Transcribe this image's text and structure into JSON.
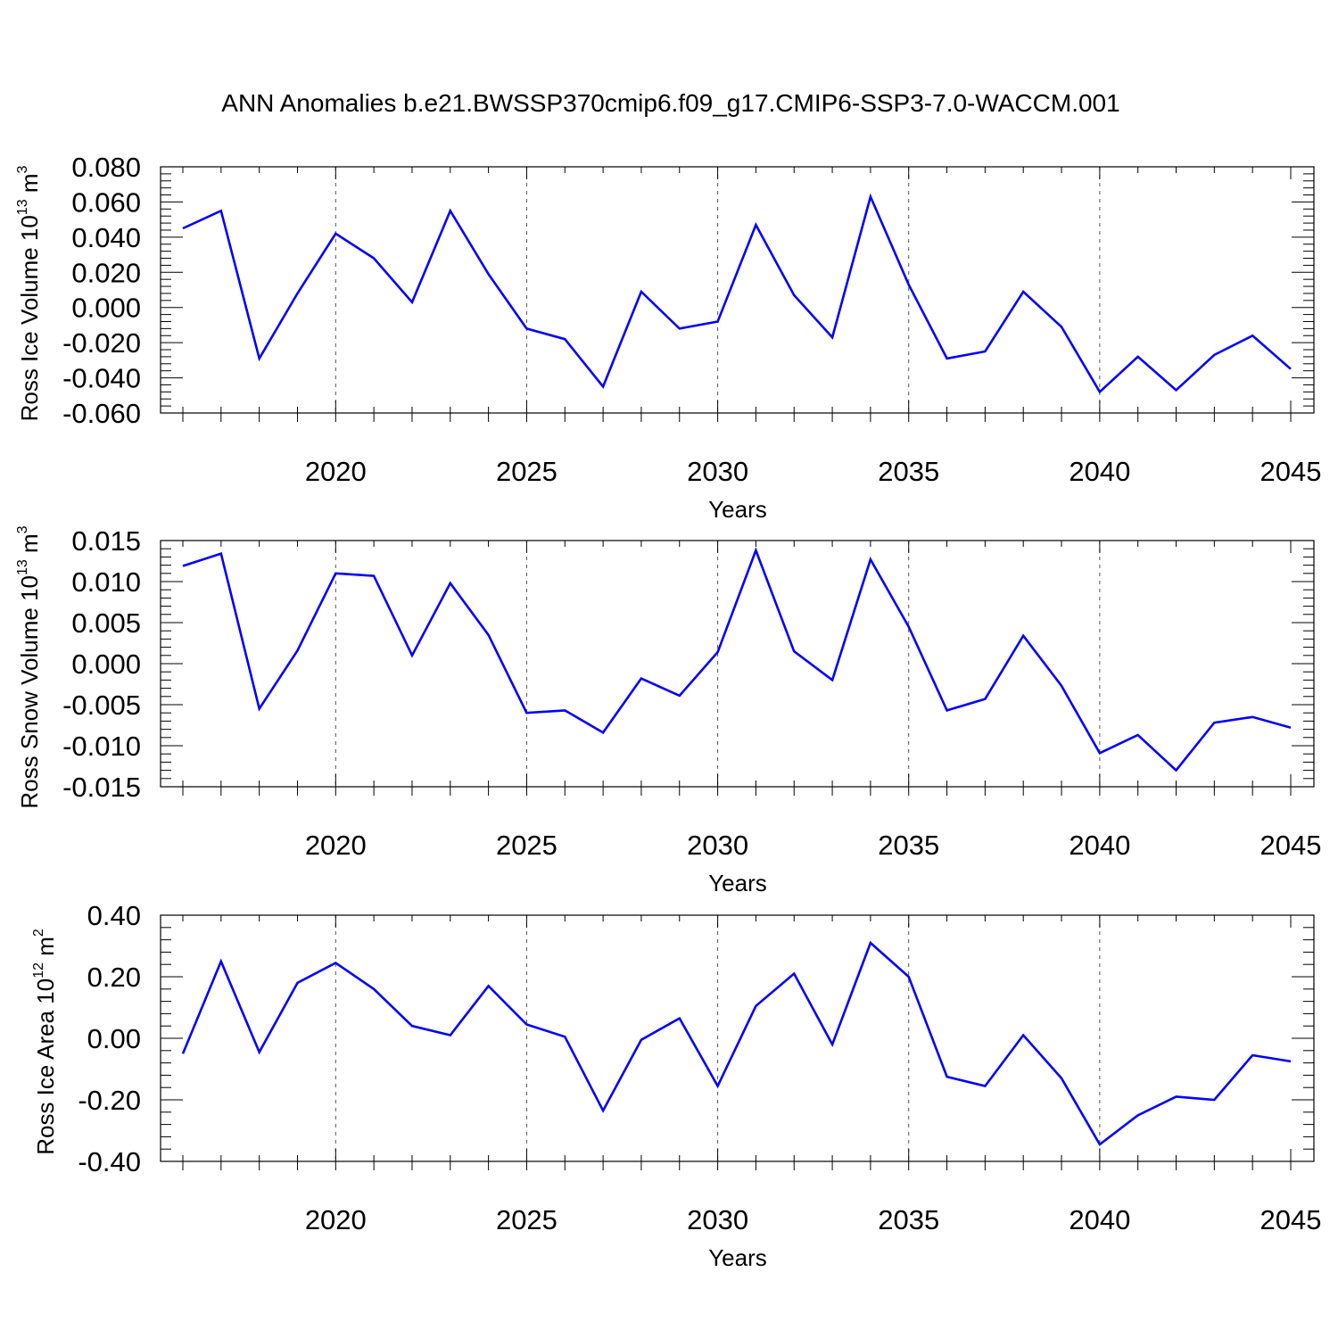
{
  "title": "ANN Anomalies b.e21.BWSSP370cmip6.f09_g17.CMIP6-SSP3-7.0-WACCM.001",
  "colors": {
    "line": "#0000ff",
    "axis": "#000000",
    "grid": "#555555",
    "background": "#ffffff"
  },
  "chart_data": [
    {
      "type": "line",
      "ylabel_main": "Ross Ice Volume 10",
      "ylabel_exp": "13",
      "ylabel_unit": " m",
      "ylabel_unit_exp": "3",
      "xlabel": "Years",
      "xlim": [
        2016,
        2045
      ],
      "ylim": [
        -0.06,
        0.08
      ],
      "yticks": [
        -0.06,
        -0.04,
        -0.02,
        0.0,
        0.02,
        0.04,
        0.06,
        0.08
      ],
      "ytick_labels": [
        "-0.060",
        "-0.040",
        "-0.020",
        "0.000",
        "0.020",
        "0.040",
        "0.060",
        "0.080"
      ],
      "xticks": [
        2020,
        2025,
        2030,
        2035,
        2040,
        2045
      ],
      "xtick_labels": [
        "2020",
        "2025",
        "2030",
        "2035",
        "2040",
        "2045"
      ],
      "grid": "dashed vertical at major x ticks",
      "x": [
        2016,
        2017,
        2018,
        2019,
        2020,
        2021,
        2022,
        2023,
        2024,
        2025,
        2026,
        2027,
        2028,
        2029,
        2030,
        2031,
        2032,
        2033,
        2034,
        2035,
        2036,
        2037,
        2038,
        2039,
        2040,
        2041,
        2042,
        2043,
        2044,
        2045
      ],
      "values": [
        0.045,
        0.055,
        -0.029,
        0.008,
        0.042,
        0.028,
        0.003,
        0.055,
        0.019,
        -0.012,
        -0.018,
        -0.045,
        0.009,
        -0.012,
        -0.008,
        0.047,
        0.007,
        -0.017,
        0.063,
        0.013,
        -0.029,
        -0.025,
        0.009,
        -0.011,
        -0.048,
        -0.028,
        -0.047,
        -0.027,
        -0.016,
        -0.035
      ]
    },
    {
      "type": "line",
      "ylabel_main": "Ross Snow Volume 10",
      "ylabel_exp": "13",
      "ylabel_unit": " m",
      "ylabel_unit_exp": "3",
      "xlabel": "Years",
      "xlim": [
        2016,
        2045
      ],
      "ylim": [
        -0.015,
        0.015
      ],
      "yticks": [
        -0.015,
        -0.01,
        -0.005,
        0.0,
        0.005,
        0.01,
        0.015
      ],
      "ytick_labels": [
        "-0.015",
        "-0.010",
        "-0.005",
        "0.000",
        "0.005",
        "0.010",
        "0.015"
      ],
      "xticks": [
        2020,
        2025,
        2030,
        2035,
        2040,
        2045
      ],
      "xtick_labels": [
        "2020",
        "2025",
        "2030",
        "2035",
        "2040",
        "2045"
      ],
      "grid": "dashed vertical at major x ticks",
      "x": [
        2016,
        2017,
        2018,
        2019,
        2020,
        2021,
        2022,
        2023,
        2024,
        2025,
        2026,
        2027,
        2028,
        2029,
        2030,
        2031,
        2032,
        2033,
        2034,
        2035,
        2036,
        2037,
        2038,
        2039,
        2040,
        2041,
        2042,
        2043,
        2044,
        2045
      ],
      "values": [
        0.0119,
        0.0134,
        -0.0055,
        0.0016,
        0.011,
        0.0107,
        0.001,
        0.0098,
        0.0035,
        -0.006,
        -0.0057,
        -0.0084,
        -0.0018,
        -0.0039,
        0.0014,
        0.0138,
        0.0015,
        -0.002,
        0.0127,
        0.0045,
        -0.0057,
        -0.0043,
        0.0034,
        -0.0027,
        -0.0109,
        -0.0087,
        -0.013,
        -0.0072,
        -0.0065,
        -0.0078
      ]
    },
    {
      "type": "line",
      "ylabel_main": "Ross Ice Area 10",
      "ylabel_exp": "12",
      "ylabel_unit": " m",
      "ylabel_unit_exp": "2",
      "xlabel": "Years",
      "xlim": [
        2016,
        2045
      ],
      "ylim": [
        -0.4,
        0.4
      ],
      "yticks": [
        -0.4,
        -0.2,
        0.0,
        0.2,
        0.4
      ],
      "ytick_labels": [
        "-0.40",
        "-0.20",
        "0.00",
        "0.20",
        "0.40"
      ],
      "xticks": [
        2020,
        2025,
        2030,
        2035,
        2040,
        2045
      ],
      "xtick_labels": [
        "2020",
        "2025",
        "2030",
        "2035",
        "2040",
        "2045"
      ],
      "grid": "dashed vertical at major x ticks",
      "x": [
        2016,
        2017,
        2018,
        2019,
        2020,
        2021,
        2022,
        2023,
        2024,
        2025,
        2026,
        2027,
        2028,
        2029,
        2030,
        2031,
        2032,
        2033,
        2034,
        2035,
        2036,
        2037,
        2038,
        2039,
        2040,
        2041,
        2042,
        2043,
        2044,
        2045
      ],
      "values": [
        -0.05,
        0.25,
        -0.045,
        0.18,
        0.245,
        0.16,
        0.04,
        0.01,
        0.17,
        0.045,
        0.005,
        -0.235,
        -0.005,
        0.065,
        -0.155,
        0.105,
        0.21,
        -0.02,
        0.31,
        0.2,
        -0.125,
        -0.155,
        0.01,
        -0.13,
        -0.345,
        -0.25,
        -0.19,
        -0.2,
        -0.055,
        -0.075
      ]
    }
  ]
}
